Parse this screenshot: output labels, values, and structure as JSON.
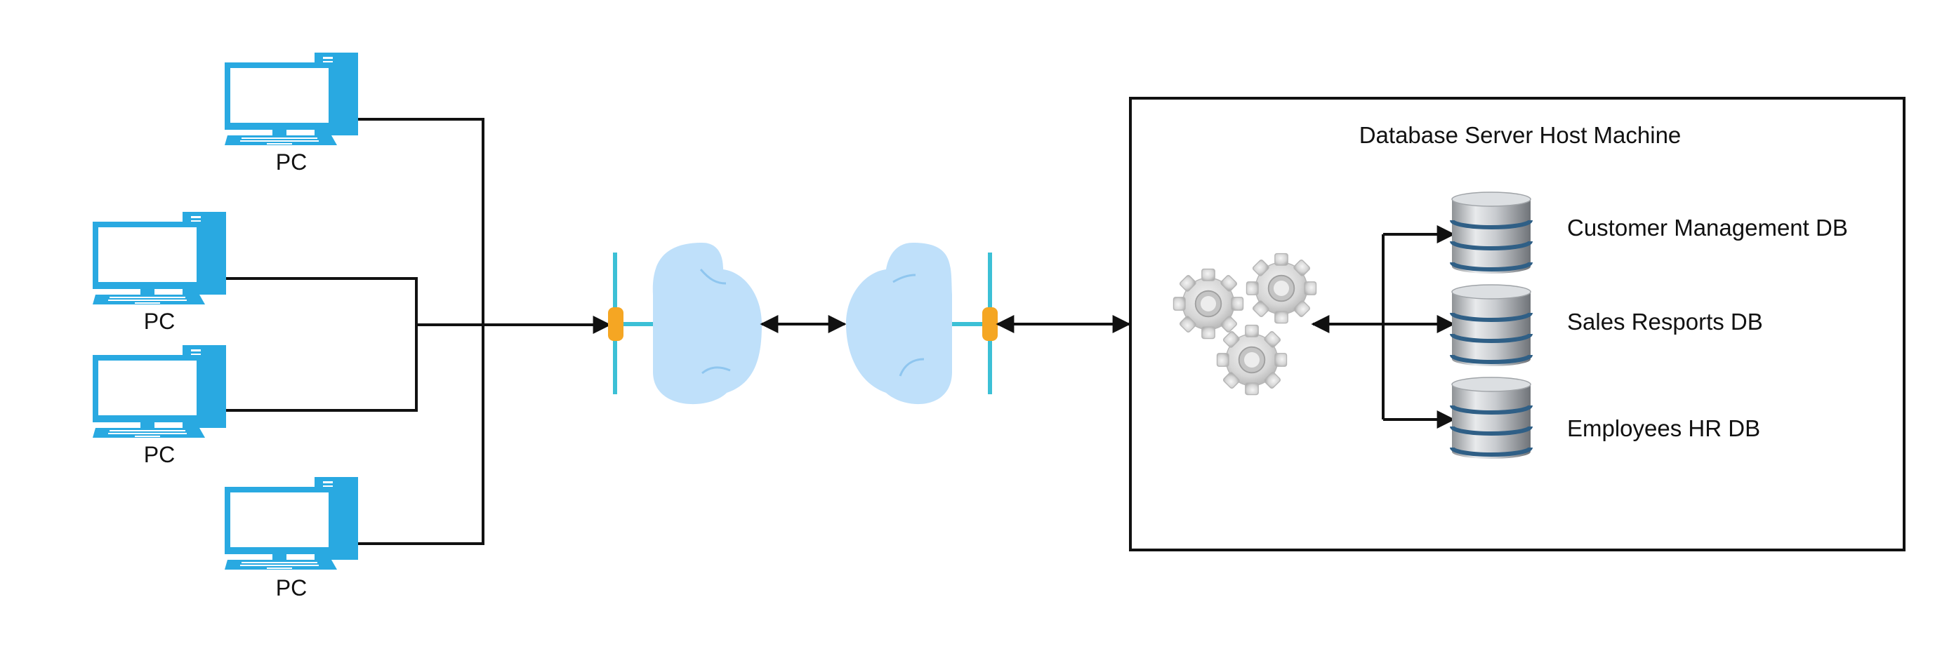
{
  "pcs": [
    {
      "label": "PC"
    },
    {
      "label": "PC"
    },
    {
      "label": "PC"
    },
    {
      "label": "PC"
    }
  ],
  "host": {
    "title": "Database Server Host Machine"
  },
  "databases": [
    {
      "label": "Customer Management DB"
    },
    {
      "label": "Sales Resports DB"
    },
    {
      "label": "Employees HR DB"
    }
  ],
  "icons": {
    "pc": "desktop-computer-icon",
    "cloud": "cloud-icon",
    "router": "network-connector-icon",
    "server": "gears-icon",
    "database": "database-icon"
  },
  "colors": {
    "pc": "#29a9e1",
    "cloud": "#bfe0fa",
    "connector_line": "#3cc0d6",
    "connector_node": "#f5a623",
    "line": "#111111",
    "db_band": "#2f5f86"
  }
}
